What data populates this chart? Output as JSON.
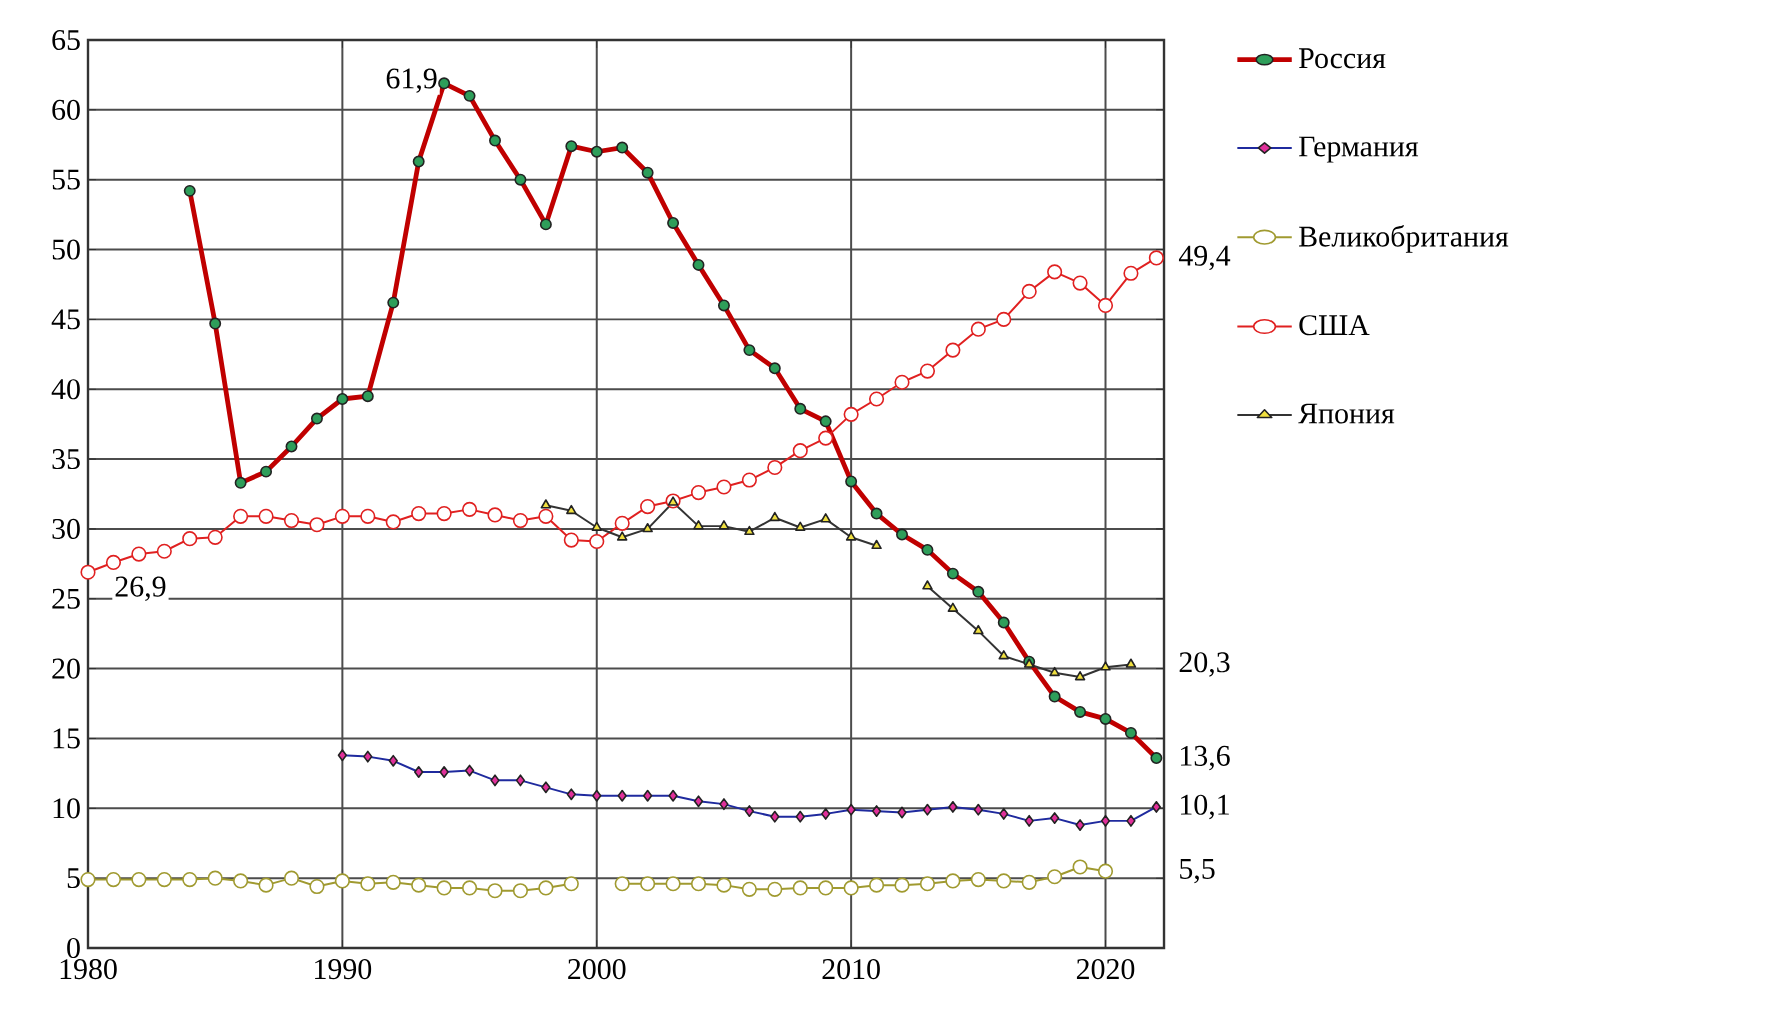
{
  "chart_data": {
    "type": "line",
    "x": [
      1980,
      1981,
      1982,
      1983,
      1984,
      1985,
      1986,
      1987,
      1988,
      1989,
      1990,
      1991,
      1992,
      1993,
      1994,
      1995,
      1996,
      1997,
      1998,
      1999,
      2000,
      2001,
      2002,
      2003,
      2004,
      2005,
      2006,
      2007,
      2008,
      2009,
      2010,
      2011,
      2012,
      2013,
      2014,
      2015,
      2016,
      2017,
      2018,
      2019,
      2020,
      2021,
      2022
    ],
    "series": [
      {
        "name": "Россия",
        "color": "#c00000",
        "marker": "circle",
        "values": [
          null,
          null,
          null,
          null,
          54.2,
          44.7,
          33.3,
          34.1,
          35.9,
          37.9,
          39.3,
          39.5,
          46.2,
          56.3,
          61.9,
          61.0,
          57.8,
          55.0,
          51.8,
          57.4,
          57.0,
          57.3,
          55.5,
          51.9,
          48.9,
          46.0,
          42.8,
          41.5,
          38.6,
          37.7,
          33.4,
          31.1,
          29.6,
          28.5,
          26.8,
          25.5,
          23.3,
          20.5,
          18.0,
          16.9,
          16.4,
          15.4,
          13.6
        ]
      },
      {
        "name": "Германия",
        "color": "#1f2a9e",
        "marker": "diamond",
        "values": [
          null,
          null,
          null,
          null,
          null,
          null,
          null,
          null,
          null,
          null,
          13.8,
          13.7,
          13.4,
          12.6,
          12.6,
          12.7,
          12.0,
          12.0,
          11.5,
          11.0,
          10.9,
          10.9,
          10.9,
          10.9,
          10.5,
          10.3,
          9.8,
          9.4,
          9.4,
          9.6,
          9.9,
          9.8,
          9.7,
          9.9,
          10.1,
          9.9,
          9.6,
          9.1,
          9.3,
          8.8,
          9.1,
          9.1,
          10.1
        ]
      },
      {
        "name": "Великобритания",
        "color": "#a09a30",
        "marker": "circle",
        "values": [
          4.9,
          4.9,
          4.9,
          4.9,
          4.9,
          5.0,
          4.8,
          4.5,
          5.0,
          4.4,
          4.8,
          4.6,
          4.7,
          4.5,
          4.3,
          4.3,
          4.1,
          4.1,
          4.3,
          4.6,
          null,
          4.6,
          4.6,
          4.6,
          4.6,
          4.5,
          4.2,
          4.2,
          4.3,
          4.3,
          4.3,
          4.5,
          4.5,
          4.6,
          4.8,
          4.9,
          4.8,
          4.7,
          5.1,
          5.8,
          5.5,
          null,
          null
        ]
      },
      {
        "name": "США",
        "color": "#e02020",
        "marker": "circle",
        "values": [
          26.9,
          27.6,
          28.2,
          28.4,
          29.3,
          29.4,
          30.9,
          30.9,
          30.6,
          30.3,
          30.9,
          30.9,
          30.5,
          31.1,
          31.1,
          31.4,
          31.0,
          30.6,
          30.9,
          29.2,
          29.1,
          30.4,
          31.6,
          32.0,
          32.6,
          33.0,
          33.5,
          34.4,
          35.6,
          36.5,
          38.2,
          39.3,
          40.5,
          41.3,
          42.8,
          44.3,
          45.0,
          47.0,
          48.4,
          47.6,
          46.0,
          48.3,
          49.4
        ]
      },
      {
        "name": "Япония",
        "color": "#333333",
        "marker": "triangle",
        "values": [
          null,
          null,
          null,
          null,
          null,
          null,
          null,
          null,
          null,
          null,
          null,
          null,
          null,
          null,
          null,
          null,
          null,
          null,
          31.7,
          31.3,
          30.1,
          29.4,
          30.0,
          31.9,
          30.2,
          30.2,
          29.8,
          30.8,
          30.1,
          30.7,
          29.4,
          28.8,
          null,
          25.9,
          24.3,
          22.7,
          20.9,
          20.3,
          19.7,
          19.4,
          20.1,
          20.3,
          null
        ]
      }
    ],
    "xlim": [
      1980,
      2022.3
    ],
    "ylim": [
      0,
      65
    ],
    "xticks": [
      1980,
      1990,
      2000,
      2010,
      2020
    ],
    "yticks": [
      0,
      5,
      10,
      15,
      20,
      25,
      30,
      35,
      40,
      45,
      50,
      55,
      60,
      65
    ],
    "grid": true,
    "legend": "right",
    "annotations": [
      {
        "text": "61,9",
        "x": 1994,
        "y": 61.9
      },
      {
        "text": "26,9",
        "x": 1980,
        "y": 26.9
      },
      {
        "text": "49,4",
        "x": 2022,
        "y": 49.4
      },
      {
        "text": "20,3",
        "x": 2021,
        "y": 20.3
      },
      {
        "text": "13,6",
        "x": 2022,
        "y": 13.6
      },
      {
        "text": "10,1",
        "x": 2022,
        "y": 10.1
      },
      {
        "text": "5,5",
        "x": 2020,
        "y": 5.5
      }
    ]
  }
}
